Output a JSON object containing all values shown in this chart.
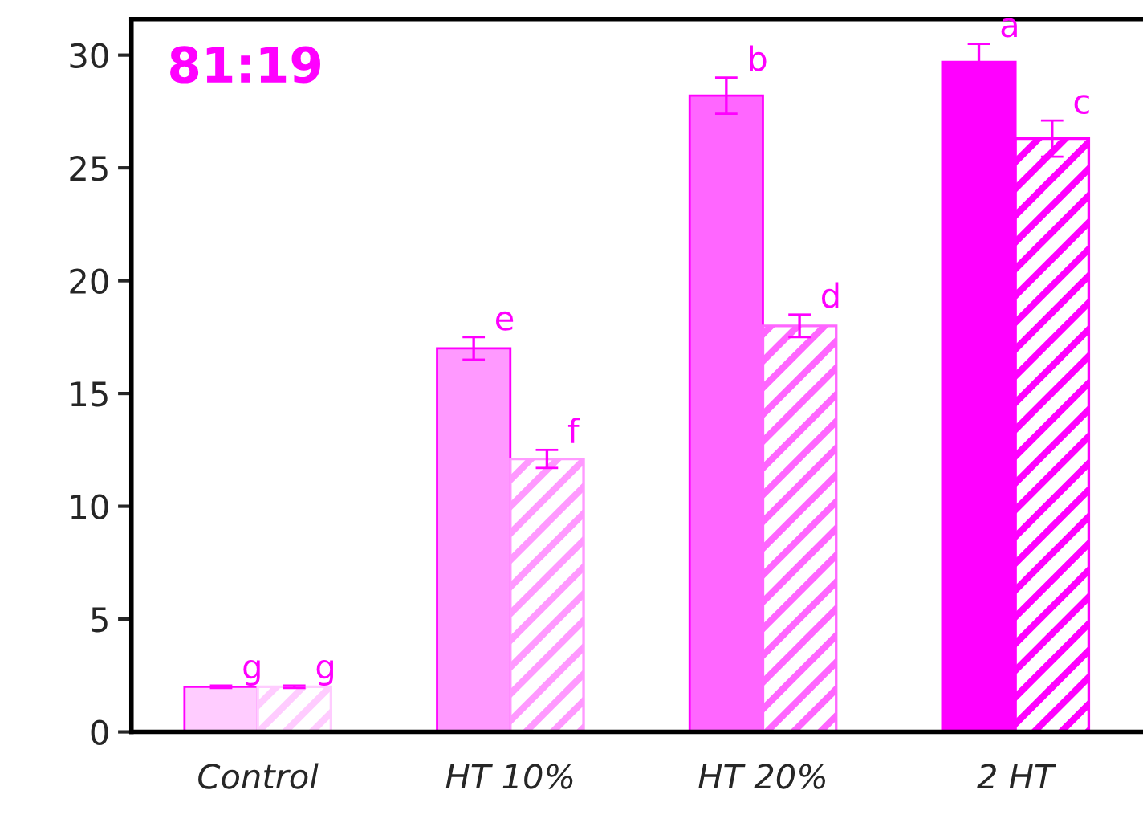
{
  "chart_data": {
    "type": "bar",
    "categories": [
      "Control",
      "HT 10%",
      "HT 20%",
      "2 HT"
    ],
    "series": [
      {
        "colors": [
          "#ffccff",
          "#ff99ff",
          "#ff66ff",
          "#ff00ff"
        ],
        "values": [
          2.0,
          17.0,
          28.2,
          29.7
        ],
        "errors": [
          0.05,
          0.5,
          0.8,
          0.8
        ],
        "value_labels": [
          "g",
          "e",
          "b",
          "a"
        ]
      },
      {
        "colors": [
          "#ffccff",
          "#ff99ff",
          "#ff66ff",
          "#ff00ff"
        ],
        "values": [
          2.0,
          12.1,
          18.0,
          26.3
        ],
        "errors": [
          0.05,
          0.4,
          0.5,
          0.8
        ],
        "value_labels": [
          "g",
          "f",
          "d",
          "c"
        ]
      }
    ],
    "annotations": [
      "81:19"
    ],
    "ylim": [
      0,
      31.6
    ],
    "yticks": [
      0,
      5,
      10,
      15,
      20,
      25,
      30
    ],
    "grid": false,
    "legend": false
  }
}
